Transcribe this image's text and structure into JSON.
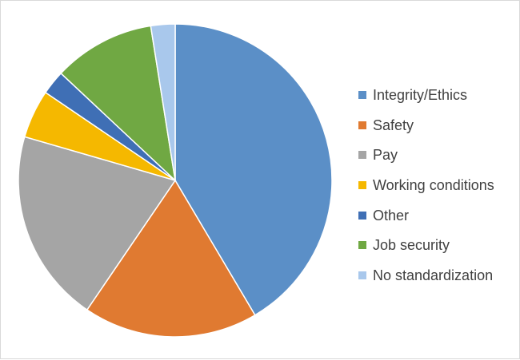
{
  "chart_data": {
    "type": "pie",
    "title": "",
    "categories": [
      "Integrity/Ethics",
      "Safety",
      "Pay",
      "Working conditions",
      "Other",
      "Job security",
      "No standardization"
    ],
    "values": [
      41.5,
      18.0,
      20.0,
      5.0,
      2.5,
      10.5,
      2.5
    ],
    "colors": [
      "#5b8fc7",
      "#e07a31",
      "#a5a5a5",
      "#f5b800",
      "#3f6fb5",
      "#70a843",
      "#a9c8ec"
    ],
    "start_angle_deg": 0,
    "direction": "clockwise",
    "legend": {
      "position": "right"
    },
    "border_color": "#d9d9d9",
    "slice_border_color": "#ffffff"
  }
}
